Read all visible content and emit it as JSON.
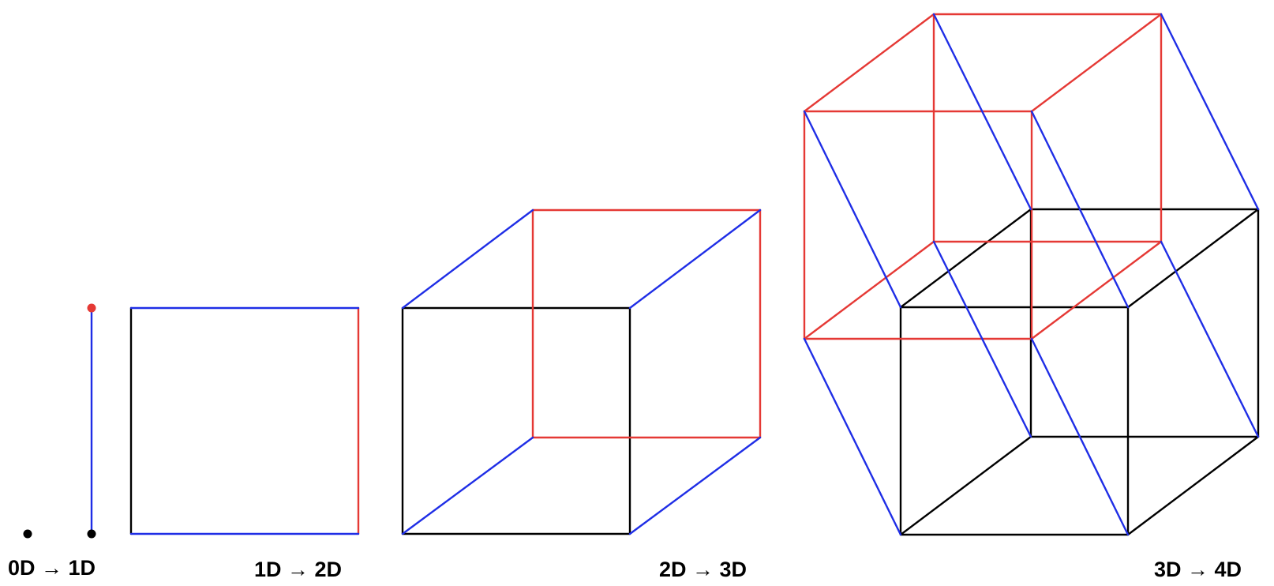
{
  "labels": {
    "d0_to_d1": "0D → 1D",
    "d1_to_d2": "1D → 2D",
    "d2_to_d3": "2D → 3D",
    "d3_to_d4": "3D → 4D"
  },
  "colors": {
    "original": "#000000",
    "copy": "#e53935",
    "connector": "#1f2ee6"
  }
}
